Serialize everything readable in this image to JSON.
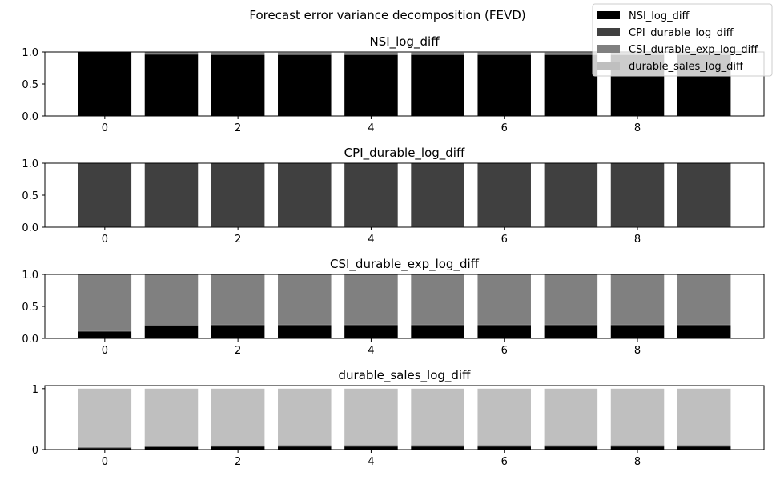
{
  "chart_data": {
    "title": "Forecast error variance decomposition (FEVD)",
    "legend_placement": "top-right",
    "colors": {
      "NSI_log_diff": "#000000",
      "CPI_durable_log_diff": "#404040",
      "CSI_durable_exp_log_diff": "#808080",
      "durable_sales_log_diff": "#bfbfbf"
    },
    "legend": [
      "NSI_log_diff",
      "CPI_durable_log_diff",
      "CSI_durable_exp_log_diff",
      "durable_sales_log_diff"
    ],
    "xlim": [
      -0.9,
      9.9
    ],
    "x_ticks": [
      "0",
      "2",
      "4",
      "6",
      "8"
    ],
    "x": [
      0,
      1,
      2,
      3,
      4,
      5,
      6,
      7,
      8,
      9
    ],
    "charts": [
      {
        "type": "bar",
        "stacked": true,
        "title": "NSI_log_diff",
        "ylim": [
          0,
          1
        ],
        "y_ticks": [
          "0.0",
          "0.5",
          "1.0"
        ],
        "series": [
          {
            "name": "NSI_log_diff",
            "values": [
              1.0,
              0.96,
              0.95,
              0.95,
              0.95,
              0.95,
              0.95,
              0.95,
              0.95,
              0.95
            ]
          },
          {
            "name": "CPI_durable_log_diff",
            "values": [
              0.0,
              0.01,
              0.01,
              0.01,
              0.01,
              0.01,
              0.01,
              0.01,
              0.01,
              0.01
            ]
          },
          {
            "name": "CSI_durable_exp_log_diff",
            "values": [
              0.0,
              0.03,
              0.03,
              0.03,
              0.03,
              0.03,
              0.03,
              0.03,
              0.03,
              0.03
            ]
          },
          {
            "name": "durable_sales_log_diff",
            "values": [
              0.0,
              0.0,
              0.01,
              0.01,
              0.01,
              0.01,
              0.01,
              0.01,
              0.01,
              0.01
            ]
          }
        ]
      },
      {
        "type": "bar",
        "stacked": true,
        "title": "CPI_durable_log_diff",
        "ylim": [
          0,
          1
        ],
        "y_ticks": [
          "0.0",
          "0.5",
          "1.0"
        ],
        "series": [
          {
            "name": "NSI_log_diff",
            "values": [
              0.005,
              0.01,
              0.01,
              0.01,
              0.01,
              0.01,
              0.01,
              0.01,
              0.01,
              0.01
            ]
          },
          {
            "name": "CPI_durable_log_diff",
            "values": [
              0.995,
              0.985,
              0.985,
              0.985,
              0.985,
              0.985,
              0.985,
              0.985,
              0.985,
              0.985
            ]
          },
          {
            "name": "CSI_durable_exp_log_diff",
            "values": [
              0.0,
              0.003,
              0.003,
              0.003,
              0.003,
              0.003,
              0.003,
              0.003,
              0.003,
              0.003
            ]
          },
          {
            "name": "durable_sales_log_diff",
            "values": [
              0.0,
              0.002,
              0.002,
              0.002,
              0.002,
              0.002,
              0.002,
              0.002,
              0.002,
              0.002
            ]
          }
        ]
      },
      {
        "type": "bar",
        "stacked": true,
        "title": "CSI_durable_exp_log_diff",
        "ylim": [
          0,
          1
        ],
        "y_ticks": [
          "0.0",
          "0.5",
          "1.0"
        ],
        "series": [
          {
            "name": "NSI_log_diff",
            "values": [
              0.1,
              0.19,
              0.2,
              0.2,
              0.2,
              0.2,
              0.2,
              0.2,
              0.2,
              0.2
            ]
          },
          {
            "name": "CPI_durable_log_diff",
            "values": [
              0.015,
              0.015,
              0.015,
              0.015,
              0.015,
              0.015,
              0.015,
              0.015,
              0.015,
              0.015
            ]
          },
          {
            "name": "CSI_durable_exp_log_diff",
            "values": [
              0.885,
              0.79,
              0.78,
              0.78,
              0.78,
              0.78,
              0.78,
              0.78,
              0.78,
              0.78
            ]
          },
          {
            "name": "durable_sales_log_diff",
            "values": [
              0.0,
              0.005,
              0.005,
              0.005,
              0.005,
              0.005,
              0.005,
              0.005,
              0.005,
              0.005
            ]
          }
        ]
      },
      {
        "type": "bar",
        "stacked": true,
        "title": "durable_sales_log_diff",
        "ylim": [
          0,
          1.05
        ],
        "y_ticks": [
          "0",
          "1"
        ],
        "y_tick_values": [
          0,
          1
        ],
        "series": [
          {
            "name": "NSI_log_diff",
            "values": [
              0.02,
              0.04,
              0.045,
              0.05,
              0.05,
              0.05,
              0.05,
              0.05,
              0.05,
              0.05
            ]
          },
          {
            "name": "CPI_durable_log_diff",
            "values": [
              0.01,
              0.01,
              0.01,
              0.01,
              0.01,
              0.01,
              0.01,
              0.01,
              0.01,
              0.01
            ]
          },
          {
            "name": "CSI_durable_exp_log_diff",
            "values": [
              0.01,
              0.015,
              0.015,
              0.015,
              0.015,
              0.015,
              0.015,
              0.015,
              0.015,
              0.015
            ]
          },
          {
            "name": "durable_sales_log_diff",
            "values": [
              0.96,
              0.935,
              0.93,
              0.925,
              0.925,
              0.925,
              0.925,
              0.925,
              0.925,
              0.925
            ]
          }
        ]
      }
    ]
  }
}
